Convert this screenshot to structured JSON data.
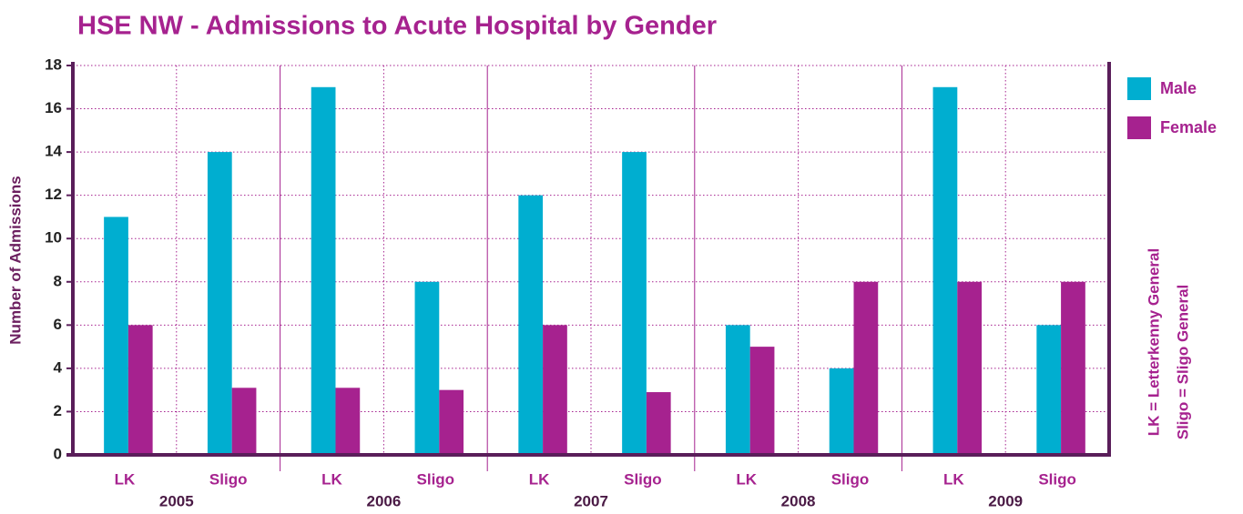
{
  "chart_data": {
    "type": "bar",
    "title": "HSE NW - Admissions to Acute Hospital by Gender",
    "y_label": "Number of Admissions",
    "categories": [
      "LK",
      "Sligo",
      "LK",
      "Sligo",
      "LK",
      "Sligo",
      "LK",
      "Sligo",
      "LK",
      "Sligo"
    ],
    "groups": [
      "2005",
      "2006",
      "2007",
      "2008",
      "2009"
    ],
    "series": [
      {
        "name": "Male",
        "color": "#00aed0",
        "values": [
          11,
          14,
          17,
          8,
          12,
          14,
          6,
          4,
          17,
          6
        ]
      },
      {
        "name": "Female",
        "color": "#a6228f",
        "values": [
          6,
          3.1,
          3.1,
          3,
          6,
          2.9,
          5,
          8,
          8,
          8
        ]
      }
    ],
    "ylim": [
      0,
      18
    ],
    "yticks": [
      0,
      2,
      4,
      6,
      8,
      10,
      12,
      14,
      16,
      18
    ],
    "grid": true,
    "legend": "top-right",
    "annotations": [
      "LK = Letterkenny General",
      "Sligo = Sligo General"
    ]
  }
}
